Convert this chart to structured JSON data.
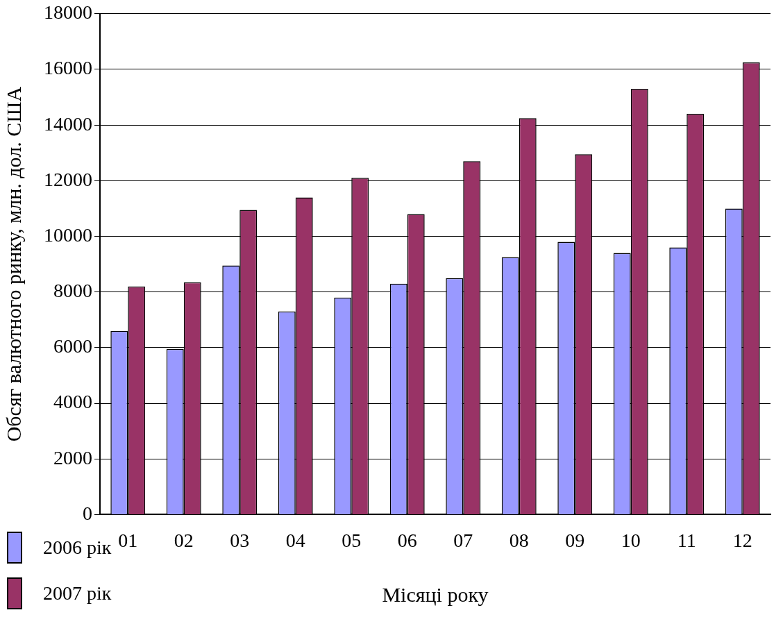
{
  "chart_data": {
    "type": "bar",
    "xlabel": "Місяці року",
    "ylabel": "Обсяг валютного ринку, млн. дол. США",
    "categories": [
      "01",
      "02",
      "03",
      "04",
      "05",
      "06",
      "07",
      "08",
      "09",
      "10",
      "11",
      "12"
    ],
    "series": [
      {
        "name": "2006 рік",
        "color": "#9999ff",
        "values": [
          6600,
          5950,
          8950,
          7300,
          7800,
          8300,
          8500,
          9250,
          9800,
          9400,
          9600,
          11000
        ]
      },
      {
        "name": "2007 рік",
        "color": "#993366",
        "values": [
          8200,
          8350,
          10950,
          11400,
          12100,
          10800,
          12700,
          14250,
          12950,
          15300,
          14400,
          16250
        ]
      }
    ],
    "ylim": [
      0,
      18000
    ],
    "yticks": [
      0,
      2000,
      4000,
      6000,
      8000,
      10000,
      12000,
      14000,
      16000,
      18000
    ],
    "grid": "y",
    "legend": "bottom left"
  }
}
